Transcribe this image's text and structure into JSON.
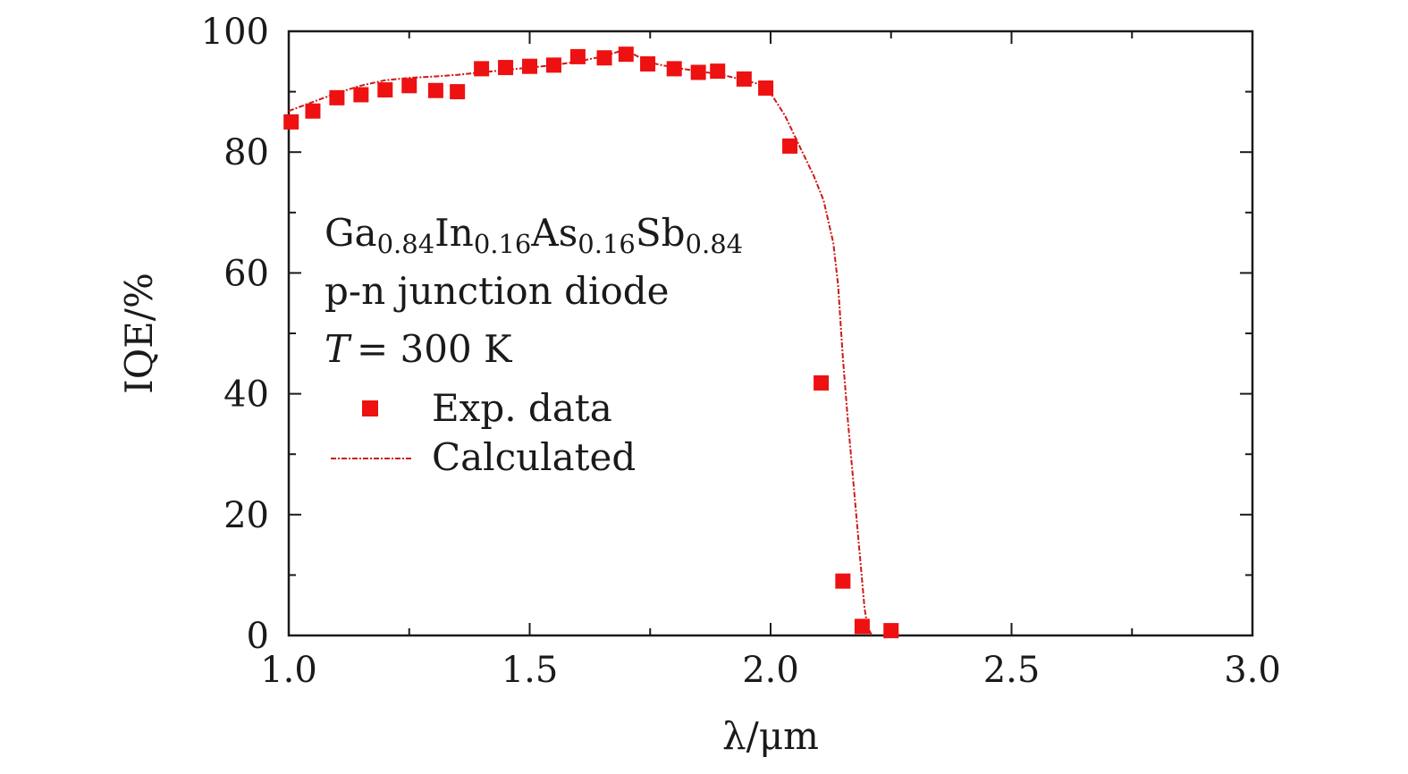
{
  "chart_data": {
    "type": "scatter",
    "title": "",
    "xlabel": "λ/μm",
    "ylabel": "IQE/%",
    "xlim": [
      1.0,
      3.0
    ],
    "ylim": [
      0,
      100
    ],
    "x_ticks": [
      "1.0",
      "1.5",
      "2.0",
      "2.5",
      "3.0"
    ],
    "y_ticks": [
      "0",
      "20",
      "40",
      "60",
      "80",
      "100"
    ],
    "grid": false,
    "legend_position": "left-middle",
    "annotation": {
      "composition": [
        {
          "text": "Ga",
          "sub": "0.84"
        },
        {
          "text": "In",
          "sub": "0.16"
        },
        {
          "text": "As",
          "sub": "0.16"
        },
        {
          "text": "Sb",
          "sub": "0.84"
        }
      ],
      "device": "p-n junction diode",
      "temperature_symbol": "T",
      "temperature_value": "= 300 K"
    },
    "series": [
      {
        "name": "Exp. data",
        "style": "square-markers",
        "color": "#ee1111",
        "x": [
          1.005,
          1.05,
          1.1,
          1.15,
          1.2,
          1.25,
          1.305,
          1.35,
          1.4,
          1.45,
          1.5,
          1.55,
          1.6,
          1.655,
          1.7,
          1.745,
          1.8,
          1.85,
          1.89,
          1.945,
          1.99,
          2.04,
          2.105,
          2.15,
          2.19,
          2.25
        ],
        "y": [
          85.0,
          86.8,
          89.0,
          89.5,
          90.3,
          91.0,
          90.2,
          90.0,
          93.8,
          94.0,
          94.2,
          94.4,
          95.8,
          95.6,
          96.2,
          94.6,
          93.8,
          93.2,
          93.4,
          92.1,
          90.6,
          81.0,
          41.8,
          9.0,
          1.5,
          0.8
        ]
      },
      {
        "name": "Calculated",
        "style": "dash-dot-line",
        "color": "#d01818",
        "x": [
          1.0,
          1.05,
          1.1,
          1.15,
          1.2,
          1.25,
          1.3,
          1.35,
          1.4,
          1.45,
          1.5,
          1.55,
          1.6,
          1.65,
          1.7,
          1.72,
          1.75,
          1.8,
          1.85,
          1.9,
          1.95,
          1.98,
          2.0,
          2.03,
          2.06,
          2.09,
          2.11,
          2.13,
          2.14,
          2.15,
          2.16,
          2.17,
          2.18,
          2.19,
          2.195,
          2.2,
          2.205,
          2.21
        ],
        "y": [
          86.8,
          88.3,
          89.8,
          91.0,
          91.9,
          92.3,
          92.5,
          92.8,
          93.2,
          93.6,
          94.0,
          94.4,
          95.0,
          95.8,
          97.0,
          96.0,
          94.8,
          94.0,
          93.4,
          92.8,
          91.8,
          91.2,
          89.8,
          86.0,
          81.0,
          76.0,
          72.0,
          65.0,
          58.0,
          46.0,
          36.0,
          27.0,
          18.0,
          9.0,
          4.5,
          2.0,
          0.8,
          0.0
        ]
      }
    ]
  }
}
